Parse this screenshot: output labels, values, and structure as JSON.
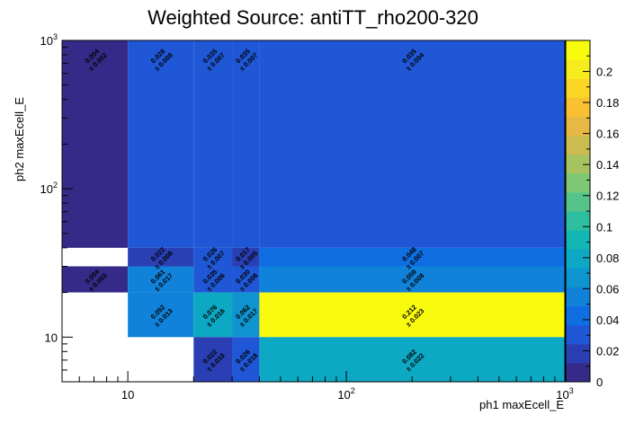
{
  "chart_data": {
    "type": "heatmap",
    "title": "Weighted Source: antiTT_rho200-320",
    "xlabel": "ph1 maxEcell_E",
    "ylabel": "ph2 maxEcell_E",
    "x_scale": "log",
    "y_scale": "log",
    "xlim": [
      5,
      1000
    ],
    "ylim": [
      5,
      1000
    ],
    "x_tick_labels": [
      {
        "value": 10,
        "label": "10"
      },
      {
        "value": 100,
        "label": "10^2"
      },
      {
        "value": 1000,
        "label": "10^3"
      }
    ],
    "y_tick_labels": [
      {
        "value": 10,
        "label": "10"
      },
      {
        "value": 100,
        "label": "10^2"
      },
      {
        "value": 1000,
        "label": "10^3"
      }
    ],
    "x_bin_edges": [
      5,
      10,
      20,
      30,
      40,
      1000
    ],
    "y_bin_edges": [
      5,
      10,
      20,
      30,
      40,
      1000
    ],
    "cells": [
      {
        "xbin": 0,
        "ybin": 4,
        "value": 0.004,
        "error": 0.002
      },
      {
        "xbin": 0,
        "ybin": 3,
        "value": null,
        "error": null
      },
      {
        "xbin": 0,
        "ybin": 2,
        "value": 0.004,
        "error": 0.003
      },
      {
        "xbin": 1,
        "ybin": 4,
        "value": 0.028,
        "error": 0.008
      },
      {
        "xbin": 1,
        "ybin": 3,
        "value": 0.022,
        "error": 0.008
      },
      {
        "xbin": 1,
        "ybin": 2,
        "value": 0.061,
        "error": 0.017
      },
      {
        "xbin": 1,
        "ybin": 1,
        "value": 0.052,
        "error": 0.013
      },
      {
        "xbin": 2,
        "ybin": 4,
        "value": 0.035,
        "error": 0.007
      },
      {
        "xbin": 2,
        "ybin": 3,
        "value": 0.026,
        "error": 0.007
      },
      {
        "xbin": 2,
        "ybin": 2,
        "value": 0.035,
        "error": 0.006
      },
      {
        "xbin": 2,
        "ybin": 1,
        "value": 0.076,
        "error": 0.016
      },
      {
        "xbin": 2,
        "ybin": 0,
        "value": 0.022,
        "error": 0.01
      },
      {
        "xbin": 3,
        "ybin": 4,
        "value": 0.035,
        "error": 0.007
      },
      {
        "xbin": 3,
        "ybin": 3,
        "value": 0.017,
        "error": 0.005
      },
      {
        "xbin": 3,
        "ybin": 2,
        "value": 0.03,
        "error": 0.008
      },
      {
        "xbin": 3,
        "ybin": 1,
        "value": 0.062,
        "error": 0.017
      },
      {
        "xbin": 3,
        "ybin": 0,
        "value": 0.026,
        "error": 0.018
      },
      {
        "xbin": 4,
        "ybin": 4,
        "value": 0.035,
        "error": 0.004
      },
      {
        "xbin": 4,
        "ybin": 3,
        "value": 0.048,
        "error": 0.007
      },
      {
        "xbin": 4,
        "ybin": 2,
        "value": 0.059,
        "error": 0.008
      },
      {
        "xbin": 4,
        "ybin": 1,
        "value": 0.212,
        "error": 0.023
      },
      {
        "xbin": 4,
        "ybin": 0,
        "value": 0.082,
        "error": 0.022
      }
    ],
    "colorbar": {
      "min": 0,
      "max": 0.22,
      "ticks": [
        0,
        0.02,
        0.04,
        0.06,
        0.08,
        0.1,
        0.12,
        0.14,
        0.16,
        0.18,
        0.2
      ],
      "tick_labels": [
        "0",
        "0.02",
        "0.04",
        "0.06",
        "0.08",
        "0.1",
        "0.12",
        "0.14",
        "0.16",
        "0.18",
        "0.2"
      ],
      "palette": [
        "#352a87",
        "#2a3fb3",
        "#1f57d6",
        "#0f6ee1",
        "#1182d9",
        "#0e95cf",
        "#0da8c4",
        "#12b6b4",
        "#2cbe9f",
        "#54c48a",
        "#7ec774",
        "#a7c35f",
        "#cbbc4f",
        "#e7b843",
        "#f9c032",
        "#fbd626",
        "#f6ec1d",
        "#f9fb0e"
      ],
      "grid": false
    }
  }
}
